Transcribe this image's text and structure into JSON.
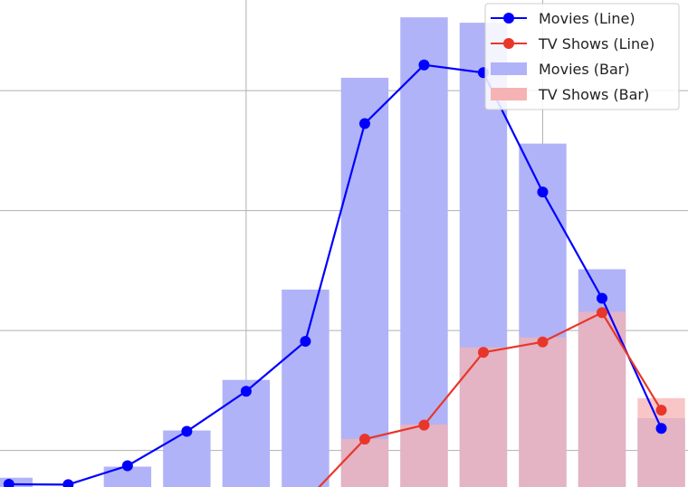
{
  "chart_data": {
    "type": "bar+line",
    "title": "",
    "xlabel": "",
    "ylabel": "",
    "grid": true,
    "legend_position": "top-right",
    "series": [
      {
        "name": "Movies (Line)",
        "kind": "line",
        "color": "#0000ff",
        "values": [
          9,
          8,
          71,
          186,
          320,
          487,
          1215,
          1411,
          1385,
          986,
          631,
          196
        ]
      },
      {
        "name": "TV Shows (Line)",
        "kind": "line",
        "color": "#e8372a",
        "values": [
          null,
          null,
          null,
          null,
          null,
          -48,
          160,
          207,
          450,
          485,
          583,
          257
        ]
      },
      {
        "name": "Movies (Bar)",
        "kind": "bar",
        "color": "#b0b3f7",
        "values": [
          31,
          0,
          68,
          189,
          358,
          660,
          1368,
          1570,
          1552,
          1148,
          728,
          230
        ]
      },
      {
        "name": "TV Shows (Bar)",
        "kind": "bar",
        "color": "#f5b3b3",
        "values": [
          0,
          0,
          0,
          0,
          0,
          0,
          161,
          209,
          467,
          500,
          586,
          297
        ]
      }
    ],
    "x": [
      0,
      1,
      2,
      3,
      4,
      5,
      6,
      7,
      8,
      9,
      10,
      11
    ],
    "xlim": [
      -0.15,
      11.45
    ],
    "ylim": [
      0,
      1628
    ],
    "y_gridlines": [
      122,
      523,
      924,
      1325
    ],
    "x_gridlines": [
      4,
      9
    ]
  }
}
